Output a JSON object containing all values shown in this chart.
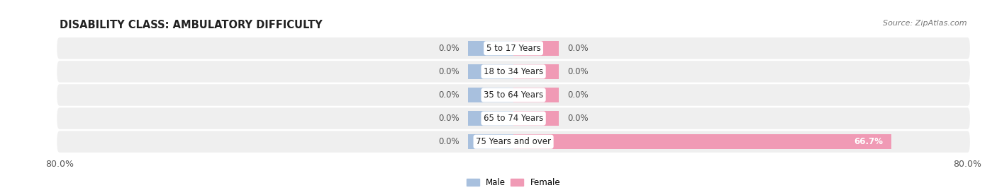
{
  "title": "DISABILITY CLASS: AMBULATORY DIFFICULTY",
  "source_text": "Source: ZipAtlas.com",
  "categories": [
    "5 to 17 Years",
    "18 to 34 Years",
    "35 to 64 Years",
    "65 to 74 Years",
    "75 Years and over"
  ],
  "male_values": [
    0.0,
    0.0,
    0.0,
    0.0,
    0.0
  ],
  "female_values": [
    0.0,
    0.0,
    0.0,
    0.0,
    66.7
  ],
  "male_color": "#a8c0de",
  "female_color": "#f09ab5",
  "row_bg_color": "#efefef",
  "row_bg_color_alt": "#e8e8e8",
  "xlim": 80.0,
  "min_bar_width": 8.0,
  "title_fontsize": 10.5,
  "label_fontsize": 8.5,
  "value_fontsize": 8.5,
  "tick_fontsize": 9,
  "bar_height": 0.62,
  "figsize": [
    14.06,
    2.69
  ],
  "dpi": 100
}
